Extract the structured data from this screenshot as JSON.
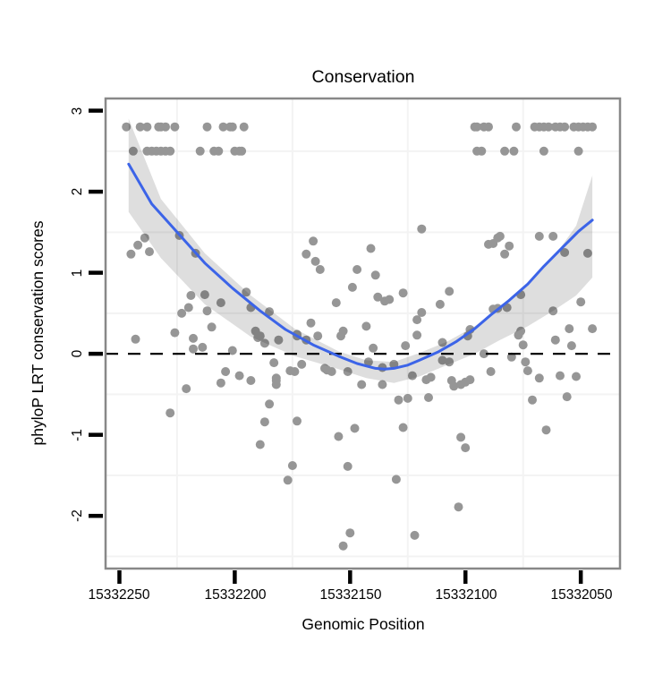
{
  "chart_data": {
    "type": "scatter",
    "title": "Conservation",
    "xlabel": "Genomic Position",
    "ylabel": "phyloP LRT conservation scores",
    "x_reversed": true,
    "x_domain": [
      15332256,
      15332033
    ],
    "y_domain": [
      3.15,
      -2.65
    ],
    "x_ticks": [
      15332250,
      15332200,
      15332150,
      15332100,
      15332050
    ],
    "y_ticks": [
      3,
      2,
      1,
      0,
      -1,
      -2
    ],
    "x_tick_labels": [
      "15332250",
      "15332200",
      "15332150",
      "15332100",
      "15332050"
    ],
    "y_tick_labels": [
      "3",
      "2",
      "1",
      "0",
      "-1",
      "-2"
    ],
    "minor_grid_x": [
      15332225,
      15332175,
      15332125,
      15332075
    ],
    "minor_grid_y": [
      2.5,
      1.5,
      0.5,
      -0.5,
      -1.5,
      -2.5
    ],
    "grid_color": "#f3f3f3",
    "hline": {
      "y": 0,
      "style": "dashed",
      "color": "#000000"
    },
    "point_color": "#969696",
    "smooth_color": "#3c64e8",
    "ribbon_opacity": 0.13,
    "panel_border_color": "#888888",
    "points": [
      [
        15332247,
        2.8
      ],
      [
        15332241,
        2.8
      ],
      [
        15332238,
        2.8
      ],
      [
        15332233,
        2.8
      ],
      [
        15332232,
        2.8
      ],
      [
        15332230,
        2.8
      ],
      [
        15332226,
        2.8
      ],
      [
        15332212,
        2.8
      ],
      [
        15332205,
        2.8
      ],
      [
        15332202,
        2.8
      ],
      [
        15332201,
        2.8
      ],
      [
        15332196,
        2.8
      ],
      [
        15332096,
        2.8
      ],
      [
        15332095,
        2.8
      ],
      [
        15332092,
        2.8
      ],
      [
        15332090,
        2.8
      ],
      [
        15332078,
        2.8
      ],
      [
        15332070,
        2.8
      ],
      [
        15332068,
        2.8
      ],
      [
        15332066,
        2.8
      ],
      [
        15332064,
        2.8
      ],
      [
        15332061,
        2.8
      ],
      [
        15332059,
        2.8
      ],
      [
        15332057,
        2.8
      ],
      [
        15332053,
        2.8
      ],
      [
        15332051,
        2.8
      ],
      [
        15332049,
        2.8
      ],
      [
        15332047,
        2.8
      ],
      [
        15332045,
        2.8
      ],
      [
        15332244,
        2.5
      ],
      [
        15332238,
        2.5
      ],
      [
        15332236,
        2.5
      ],
      [
        15332234,
        2.5
      ],
      [
        15332232,
        2.5
      ],
      [
        15332230,
        2.5
      ],
      [
        15332228,
        2.5
      ],
      [
        15332215,
        2.5
      ],
      [
        15332209,
        2.5
      ],
      [
        15332207,
        2.5
      ],
      [
        15332200,
        2.5
      ],
      [
        15332198,
        2.5
      ],
      [
        15332197,
        2.5
      ],
      [
        15332095,
        2.5
      ],
      [
        15332093,
        2.5
      ],
      [
        15332083,
        2.5
      ],
      [
        15332079,
        2.5
      ],
      [
        15332066,
        2.5
      ],
      [
        15332051,
        2.5
      ],
      [
        15332239,
        1.43
      ],
      [
        15332242,
        1.34
      ],
      [
        15332245,
        1.23
      ],
      [
        15332237,
        1.26
      ],
      [
        15332224,
        1.46
      ],
      [
        15332217,
        1.24
      ],
      [
        15332219,
        0.72
      ],
      [
        15332213,
        0.73
      ],
      [
        15332220,
        0.57
      ],
      [
        15332212,
        0.53
      ],
      [
        15332206,
        0.63
      ],
      [
        15332195,
        0.76
      ],
      [
        15332193,
        0.57
      ],
      [
        15332185,
        0.52
      ],
      [
        15332223,
        0.5
      ],
      [
        15332210,
        0.33
      ],
      [
        15332191,
        0.28
      ],
      [
        15332226,
        0.26
      ],
      [
        15332218,
        0.19
      ],
      [
        15332214,
        0.08
      ],
      [
        15332218,
        0.06
      ],
      [
        15332201,
        0.04
      ],
      [
        15332190,
        0.2
      ],
      [
        15332181,
        0.17
      ],
      [
        15332187,
        0.13
      ],
      [
        15332173,
        0.24
      ],
      [
        15332243,
        0.18
      ],
      [
        15332189,
        0.22
      ],
      [
        15332183,
        -0.11
      ],
      [
        15332204,
        -0.22
      ],
      [
        15332198,
        -0.27
      ],
      [
        15332206,
        -0.36
      ],
      [
        15332193,
        -0.33
      ],
      [
        15332182,
        -0.33
      ],
      [
        15332221,
        -0.43
      ],
      [
        15332185,
        -0.62
      ],
      [
        15332228,
        -0.73
      ],
      [
        15332187,
        -0.84
      ],
      [
        15332189,
        -1.12
      ],
      [
        15332173,
        0.22
      ],
      [
        15332169,
        0.17
      ],
      [
        15332164,
        0.22
      ],
      [
        15332154,
        0.22
      ],
      [
        15332140,
        0.07
      ],
      [
        15332126,
        0.1
      ],
      [
        15332121,
        0.23
      ],
      [
        15332110,
        0.14
      ],
      [
        15332171,
        -0.13
      ],
      [
        15332176,
        -0.21
      ],
      [
        15332174,
        -0.22
      ],
      [
        15332161,
        -0.18
      ],
      [
        15332160,
        -0.2
      ],
      [
        15332158,
        -0.22
      ],
      [
        15332151,
        -0.22
      ],
      [
        15332142,
        -0.1
      ],
      [
        15332136,
        -0.17
      ],
      [
        15332131,
        -0.13
      ],
      [
        15332182,
        -0.3
      ],
      [
        15332182,
        -0.38
      ],
      [
        15332145,
        -0.38
      ],
      [
        15332136,
        -0.38
      ],
      [
        15332123,
        -0.27
      ],
      [
        15332117,
        -0.32
      ],
      [
        15332115,
        -0.29
      ],
      [
        15332110,
        -0.08
      ],
      [
        15332116,
        -0.54
      ],
      [
        15332125,
        -0.55
      ],
      [
        15332129,
        -0.57
      ],
      [
        15332173,
        -0.83
      ],
      [
        15332148,
        -0.92
      ],
      [
        15332155,
        -1.02
      ],
      [
        15332127,
        -0.91
      ],
      [
        15332175,
        -1.38
      ],
      [
        15332151,
        -1.39
      ],
      [
        15332177,
        -1.56
      ],
      [
        15332130,
        -1.55
      ],
      [
        15332150,
        -2.21
      ],
      [
        15332153,
        -2.37
      ],
      [
        15332122,
        -2.24
      ],
      [
        15332119,
        1.54
      ],
      [
        15332166,
        1.39
      ],
      [
        15332141,
        1.3
      ],
      [
        15332169,
        1.23
      ],
      [
        15332165,
        1.14
      ],
      [
        15332163,
        1.04
      ],
      [
        15332147,
        1.04
      ],
      [
        15332139,
        0.97
      ],
      [
        15332149,
        0.82
      ],
      [
        15332127,
        0.75
      ],
      [
        15332138,
        0.7
      ],
      [
        15332135,
        0.65
      ],
      [
        15332133,
        0.67
      ],
      [
        15332156,
        0.63
      ],
      [
        15332111,
        0.61
      ],
      [
        15332119,
        0.51
      ],
      [
        15332167,
        0.38
      ],
      [
        15332143,
        0.34
      ],
      [
        15332121,
        0.42
      ],
      [
        15332153,
        0.28
      ],
      [
        15332107,
        0.77
      ],
      [
        15332088,
        1.36
      ],
      [
        15332086,
        1.43
      ],
      [
        15332085,
        1.45
      ],
      [
        15332090,
        1.35
      ],
      [
        15332081,
        1.33
      ],
      [
        15332083,
        1.23
      ],
      [
        15332068,
        1.45
      ],
      [
        15332062,
        1.45
      ],
      [
        15332057,
        1.25
      ],
      [
        15332047,
        1.24
      ],
      [
        15332076,
        0.73
      ],
      [
        15332050,
        0.64
      ],
      [
        15332062,
        0.53
      ],
      [
        15332088,
        0.55
      ],
      [
        15332086,
        0.56
      ],
      [
        15332082,
        0.57
      ],
      [
        15332098,
        0.3
      ],
      [
        15332076,
        0.28
      ],
      [
        15332055,
        0.31
      ],
      [
        15332045,
        0.31
      ],
      [
        15332099,
        0.22
      ],
      [
        15332077,
        0.23
      ],
      [
        15332075,
        0.11
      ],
      [
        15332061,
        0.17
      ],
      [
        15332054,
        0.1
      ],
      [
        15332092,
        0.0
      ],
      [
        15332080,
        -0.04
      ],
      [
        15332074,
        -0.1
      ],
      [
        15332107,
        -0.1
      ],
      [
        15332089,
        -0.22
      ],
      [
        15332073,
        -0.21
      ],
      [
        15332068,
        -0.3
      ],
      [
        15332059,
        -0.27
      ],
      [
        15332052,
        -0.28
      ],
      [
        15332106,
        -0.33
      ],
      [
        15332105,
        -0.4
      ],
      [
        15332102,
        -0.38
      ],
      [
        15332100,
        -0.35
      ],
      [
        15332098,
        -0.32
      ],
      [
        15332056,
        -0.53
      ],
      [
        15332071,
        -0.57
      ],
      [
        15332065,
        -0.94
      ],
      [
        15332102,
        -1.03
      ],
      [
        15332100,
        -1.16
      ],
      [
        15332103,
        -1.89
      ]
    ],
    "smooth_line": [
      [
        15332246,
        2.34
      ],
      [
        15332236,
        1.85
      ],
      [
        15332224,
        1.47
      ],
      [
        15332213,
        1.12
      ],
      [
        15332201,
        0.81
      ],
      [
        15332189,
        0.53
      ],
      [
        15332178,
        0.3
      ],
      [
        15332166,
        0.11
      ],
      [
        15332155,
        -0.03
      ],
      [
        15332147,
        -0.12
      ],
      [
        15332139,
        -0.18
      ],
      [
        15332135,
        -0.19
      ],
      [
        15332131,
        -0.18
      ],
      [
        15332125,
        -0.14
      ],
      [
        15332120,
        -0.08
      ],
      [
        15332112,
        0.02
      ],
      [
        15332104,
        0.15
      ],
      [
        15332096,
        0.31
      ],
      [
        15332089,
        0.48
      ],
      [
        15332081,
        0.66
      ],
      [
        15332073,
        0.86
      ],
      [
        15332066,
        1.08
      ],
      [
        15332058,
        1.31
      ],
      [
        15332051,
        1.51
      ],
      [
        15332045,
        1.65
      ]
    ],
    "ribbon": [
      {
        "x": 15332246,
        "upper": 2.9,
        "lower": 1.75
      },
      {
        "x": 15332232,
        "upper": 1.91,
        "lower": 1.18
      },
      {
        "x": 15332213,
        "upper": 1.24,
        "lower": 0.61
      },
      {
        "x": 15332193,
        "upper": 0.72,
        "lower": 0.21
      },
      {
        "x": 15332174,
        "upper": 0.31,
        "lower": -0.03
      },
      {
        "x": 15332155,
        "upper": 0.03,
        "lower": -0.19
      },
      {
        "x": 15332143,
        "upper": -0.08,
        "lower": -0.3
      },
      {
        "x": 15332131,
        "upper": -0.1,
        "lower": -0.36
      },
      {
        "x": 15332120,
        "upper": 0.01,
        "lower": -0.28
      },
      {
        "x": 15332108,
        "upper": 0.15,
        "lower": -0.14
      },
      {
        "x": 15332096,
        "upper": 0.34,
        "lower": 0.0
      },
      {
        "x": 15332085,
        "upper": 0.57,
        "lower": 0.17
      },
      {
        "x": 15332073,
        "upper": 0.84,
        "lower": 0.34
      },
      {
        "x": 15332062,
        "upper": 1.18,
        "lower": 0.53
      },
      {
        "x": 15332052,
        "upper": 1.58,
        "lower": 0.72
      },
      {
        "x": 15332045,
        "upper": 2.2,
        "lower": 0.94
      }
    ]
  }
}
